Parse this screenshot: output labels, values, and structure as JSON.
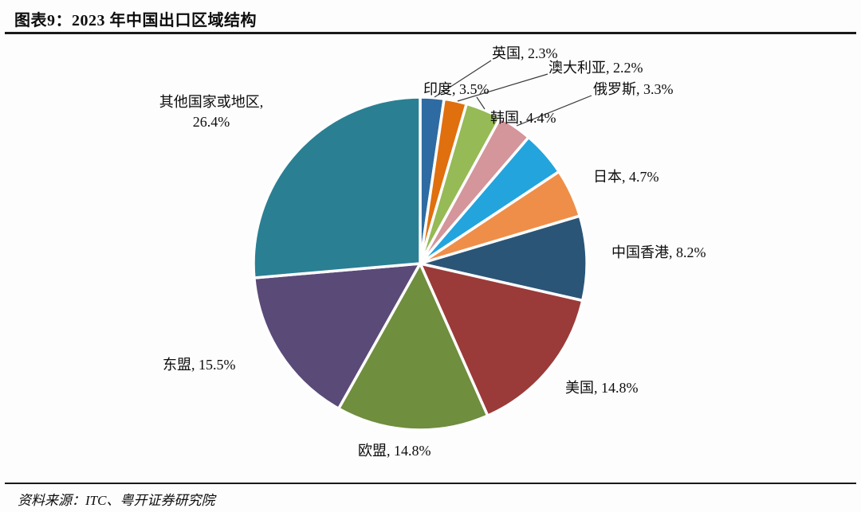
{
  "header": {
    "title": "图表9：2023 年中国出口区域结构"
  },
  "footer": {
    "source_label": "资料来源：ITC、粤开证券研究院"
  },
  "chart_data": {
    "type": "pie",
    "title": "2023 年中国出口区域结构",
    "value_unit": "percent",
    "rotation": "clockwise-from-top",
    "legend": "none",
    "segments": [
      {
        "id": "uk",
        "label": "英国",
        "value": 2.3,
        "color": "#2e6ba2",
        "label_text": "英国, 2.3%"
      },
      {
        "id": "australia",
        "label": "澳大利亚",
        "value": 2.2,
        "color": "#e06f0e",
        "label_text": "澳大利亚, 2.2%"
      },
      {
        "id": "india",
        "label": "印度",
        "value": 3.5,
        "color": "#96ba55",
        "label_text": "印度, 3.5%"
      },
      {
        "id": "russia",
        "label": "俄罗斯",
        "value": 3.3,
        "color": "#d4959b",
        "label_text": "俄罗斯, 3.3%"
      },
      {
        "id": "south-korea",
        "label": "韩国",
        "value": 4.4,
        "color": "#23a4dd",
        "label_text": "韩国, 4.4%"
      },
      {
        "id": "japan",
        "label": "日本",
        "value": 4.7,
        "color": "#ef8e49",
        "label_text": "日本, 4.7%"
      },
      {
        "id": "hong-kong",
        "label": "中国香港",
        "value": 8.2,
        "color": "#2b5577",
        "label_text": "中国香港, 8.2%"
      },
      {
        "id": "usa",
        "label": "美国",
        "value": 14.8,
        "color": "#9a3b39",
        "label_text": "美国, 14.8%"
      },
      {
        "id": "eu",
        "label": "欧盟",
        "value": 14.8,
        "color": "#6f8e3e",
        "label_text": "欧盟, 14.8%"
      },
      {
        "id": "asean",
        "label": "东盟",
        "value": 15.5,
        "color": "#5a4a78",
        "label_text": "东盟, 15.5%"
      },
      {
        "id": "others",
        "label": "其他国家或地区",
        "value": 26.4,
        "color": "#2a7f93",
        "label_text": "其他国家或地区, 26.4%"
      }
    ]
  }
}
